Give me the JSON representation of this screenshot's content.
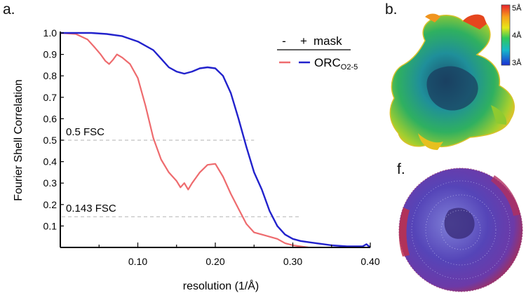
{
  "panel_labels": {
    "a": "a.",
    "b": "b.",
    "f": "f."
  },
  "colorbar": {
    "top": "5Å",
    "mid": "4Å",
    "bottom": "3Å"
  },
  "legend": {
    "header_minus": "-",
    "header_plus": "+",
    "header_mask": "mask",
    "label_main": "ORC",
    "label_sub": "O2-5"
  },
  "colors": {
    "minus_mask": "#ee6b6e",
    "plus_mask": "#2222cc",
    "threshold": "#cccccc",
    "axis": "#000000"
  },
  "chart_data": {
    "type": "line",
    "xlabel": "resolution (1/Å)",
    "ylabel": "Fourier Shell Correlation",
    "xlim": [
      0,
      0.4
    ],
    "ylim": [
      0,
      1.0
    ],
    "xticks": [
      0.1,
      0.2,
      0.3,
      0.4
    ],
    "xtick_labels": [
      "0.10",
      "0.20",
      "0.30",
      "0.40"
    ],
    "yticks": [
      0.1,
      0.2,
      0.3,
      0.4,
      0.5,
      0.6,
      0.7,
      0.8,
      0.9,
      1.0
    ],
    "ytick_labels": [
      "0.1",
      "0.2",
      "0.3",
      "0.4",
      "0.5",
      "0.6",
      "0.7",
      "0.8",
      "0.9",
      "1.0"
    ],
    "thresholds": [
      {
        "label": "0.5 FSC",
        "value": 0.5,
        "x_end": 0.25
      },
      {
        "label": "0.143 FSC",
        "value": 0.143,
        "x_end": 0.31
      }
    ],
    "series": [
      {
        "name": "- mask",
        "x": [
          0.0,
          0.02,
          0.035,
          0.045,
          0.052,
          0.058,
          0.063,
          0.068,
          0.073,
          0.08,
          0.09,
          0.1,
          0.11,
          0.12,
          0.13,
          0.14,
          0.15,
          0.155,
          0.16,
          0.165,
          0.17,
          0.18,
          0.19,
          0.2,
          0.21,
          0.22,
          0.23,
          0.24,
          0.25,
          0.26,
          0.27,
          0.28,
          0.29,
          0.3,
          0.31,
          0.32
        ],
        "y": [
          1.0,
          0.995,
          0.97,
          0.93,
          0.9,
          0.87,
          0.855,
          0.875,
          0.9,
          0.885,
          0.855,
          0.79,
          0.66,
          0.51,
          0.41,
          0.35,
          0.31,
          0.28,
          0.3,
          0.27,
          0.3,
          0.35,
          0.385,
          0.39,
          0.33,
          0.25,
          0.18,
          0.11,
          0.07,
          0.06,
          0.05,
          0.04,
          0.02,
          0.01,
          0.005,
          0.0
        ]
      },
      {
        "name": "+ mask",
        "x": [
          0.0,
          0.04,
          0.06,
          0.08,
          0.1,
          0.12,
          0.13,
          0.14,
          0.15,
          0.16,
          0.17,
          0.18,
          0.19,
          0.2,
          0.21,
          0.22,
          0.23,
          0.24,
          0.25,
          0.26,
          0.27,
          0.28,
          0.29,
          0.3,
          0.31,
          0.32,
          0.33,
          0.35,
          0.37,
          0.39,
          0.395,
          0.4
        ],
        "y": [
          1.0,
          1.0,
          0.995,
          0.985,
          0.96,
          0.92,
          0.88,
          0.84,
          0.82,
          0.81,
          0.82,
          0.835,
          0.84,
          0.835,
          0.8,
          0.72,
          0.6,
          0.47,
          0.35,
          0.27,
          0.17,
          0.1,
          0.06,
          0.04,
          0.03,
          0.025,
          0.02,
          0.01,
          0.005,
          0.005,
          0.015,
          0.0
        ]
      }
    ]
  }
}
